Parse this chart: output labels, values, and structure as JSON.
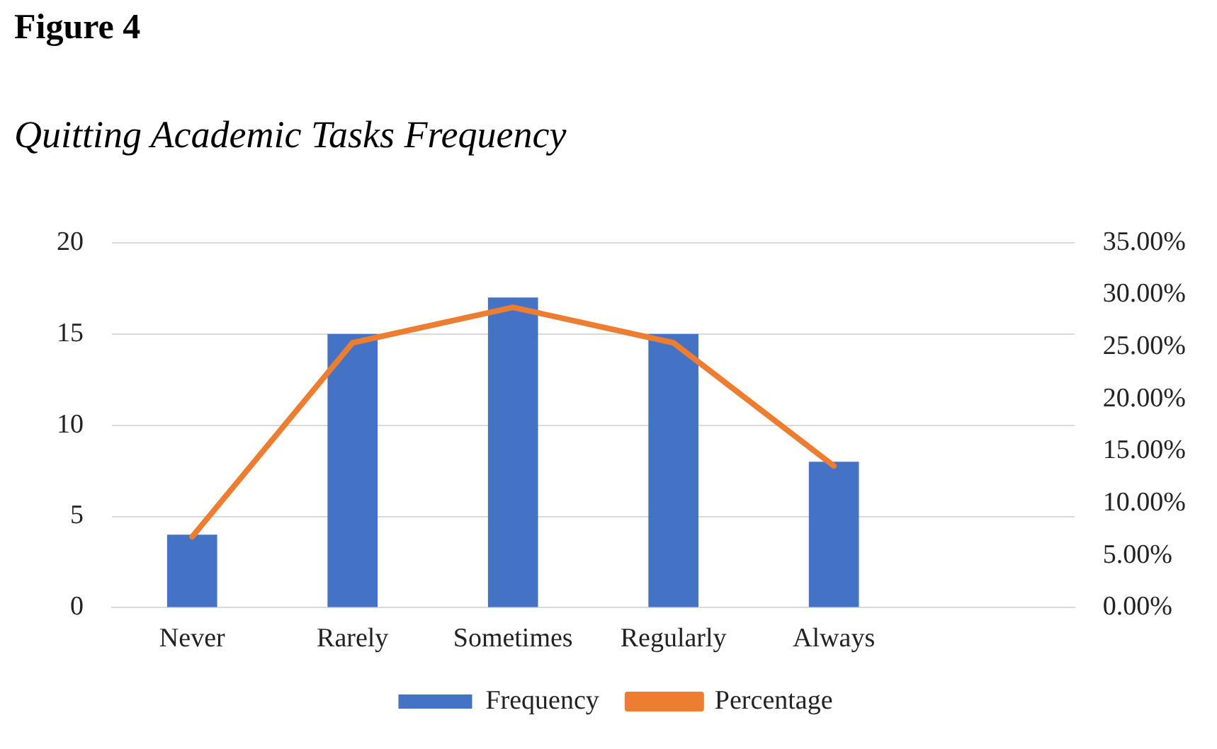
{
  "chart_data": {
    "type": "bar",
    "title": "Figure 4",
    "subtitle": "Quitting Academic Tasks Frequency",
    "categories": [
      "Never",
      "Rarely",
      "Sometimes",
      "Regularly",
      "Always",
      null
    ],
    "series": [
      {
        "name": "Frequency",
        "color": "#4472c4",
        "values": [
          4,
          15,
          17,
          15,
          8,
          null
        ]
      },
      {
        "name": "Percentage",
        "type": "line",
        "axis": "y2",
        "color": "#ed7d31",
        "values": [
          6.8,
          25.4,
          28.8,
          25.4,
          13.6,
          null
        ]
      }
    ],
    "ylim": [
      0,
      20
    ],
    "yticks": [
      0,
      5,
      10,
      15,
      20
    ],
    "y2lim": [
      0,
      35
    ],
    "y2ticks": [
      {
        "value": 0,
        "label": "0.00%"
      },
      {
        "value": 5,
        "label": "5.00%"
      },
      {
        "value": 10,
        "label": "10.00%"
      },
      {
        "value": 15,
        "label": "15.00%"
      },
      {
        "value": 20,
        "label": "20.00%"
      },
      {
        "value": 25,
        "label": "25.00%"
      },
      {
        "value": 30,
        "label": "30.00%"
      },
      {
        "value": 35,
        "label": "35.00%"
      }
    ],
    "grid": "y",
    "legend": "bottom",
    "marker": "none",
    "line_style": "solid"
  }
}
